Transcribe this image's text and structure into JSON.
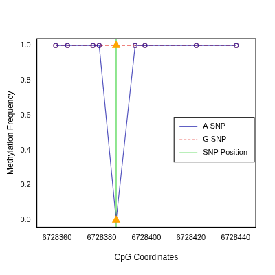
{
  "chart_data": {
    "type": "line",
    "x_label": "CpG Coordinates",
    "y_label": "Methylation Frequency",
    "x": [
      6728359.4,
      6728364.7,
      6728376.1,
      6728378.9,
      6728386.5,
      6728395.0,
      6728399.4,
      6728422.4,
      6728440.3
    ],
    "series": [
      {
        "name": "A SNP",
        "color": "#1a1aa8",
        "line_style": "solid",
        "marker": "circle",
        "values": [
          1,
          1,
          1,
          1,
          0,
          1,
          1,
          1,
          1
        ]
      },
      {
        "name": "G SNP",
        "color": "#e0201a",
        "line_style": "dashed",
        "marker": "circle",
        "values": [
          1,
          1,
          1,
          1,
          1,
          1,
          1,
          1,
          1
        ]
      }
    ],
    "snp_position": {
      "name": "SNP Position",
      "color": "#22cc22",
      "x": 6728386.5,
      "marker_color": "#ffa500"
    },
    "xlim": [
      6728351,
      6728449
    ],
    "xticks": [
      6728360,
      6728380,
      6728400,
      6728420,
      6728440
    ],
    "ylim": [
      -0.04,
      1.04
    ],
    "yticks": [
      {
        "value": 0,
        "label": "0.0"
      },
      {
        "value": 0.2,
        "label": "0.2"
      },
      {
        "value": 0.4,
        "label": "0.4"
      },
      {
        "value": 0.6,
        "label": "0.6"
      },
      {
        "value": 0.8,
        "label": "0.8"
      },
      {
        "value": 1,
        "label": "1.0"
      }
    ],
    "grid": false,
    "legend": "right"
  }
}
